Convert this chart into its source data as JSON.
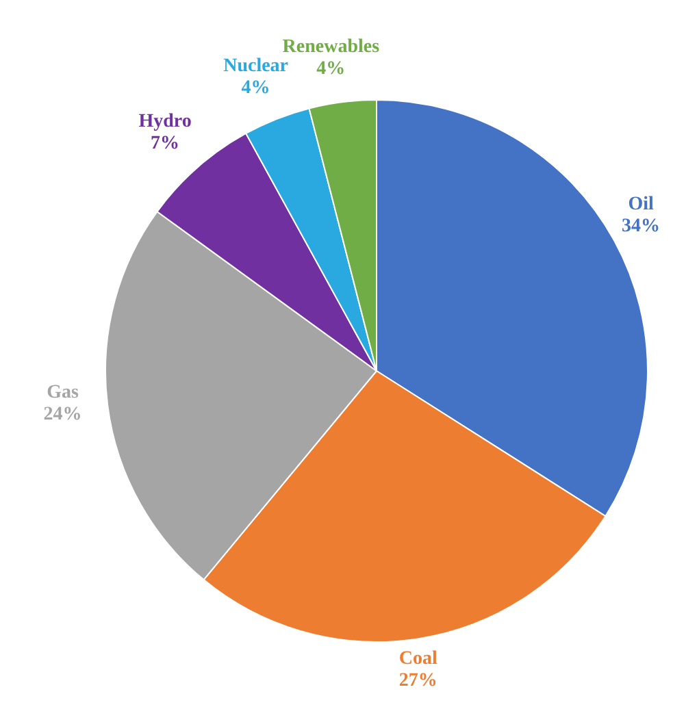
{
  "chart_data": {
    "type": "pie",
    "categories": [
      "Oil",
      "Coal",
      "Gas",
      "Hydro",
      "Nuclear",
      "Renewables"
    ],
    "values": [
      34,
      27,
      24,
      7,
      4,
      4
    ],
    "value_labels": [
      "34%",
      "27%",
      "24%",
      "7%",
      "4%",
      "4%"
    ],
    "colors": [
      "#4472c4",
      "#ed7d31",
      "#a5a5a5",
      "#7030a0",
      "#29a9e0",
      "#70ad47"
    ],
    "legend": false
  }
}
